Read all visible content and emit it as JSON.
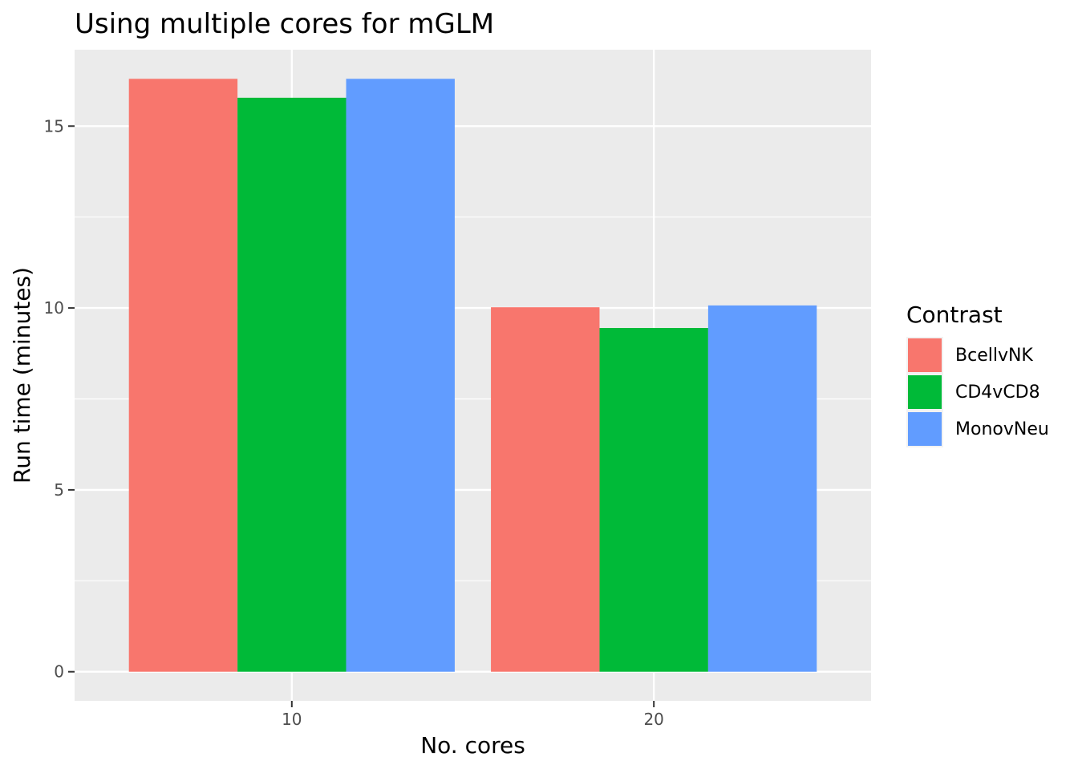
{
  "chart_data": {
    "type": "bar",
    "title": "Using multiple cores for mGLM",
    "xlabel": "No. cores",
    "ylabel": "Run time (minutes)",
    "categories": [
      "10",
      "20"
    ],
    "series": [
      {
        "name": "BcellvNK",
        "color": "#F8766D",
        "values": [
          16.3,
          10.02
        ]
      },
      {
        "name": "CD4vCD8",
        "color": "#00BA38",
        "values": [
          15.78,
          9.45
        ]
      },
      {
        "name": "MonovNeu",
        "color": "#619CFF",
        "values": [
          16.3,
          10.07
        ]
      }
    ],
    "ylim": [
      -0.8,
      17.1
    ],
    "yticks": [
      0,
      5,
      10,
      15
    ],
    "legend": {
      "title": "Contrast",
      "position": "right"
    },
    "panel_background": "#EBEBEB",
    "grid": true
  }
}
